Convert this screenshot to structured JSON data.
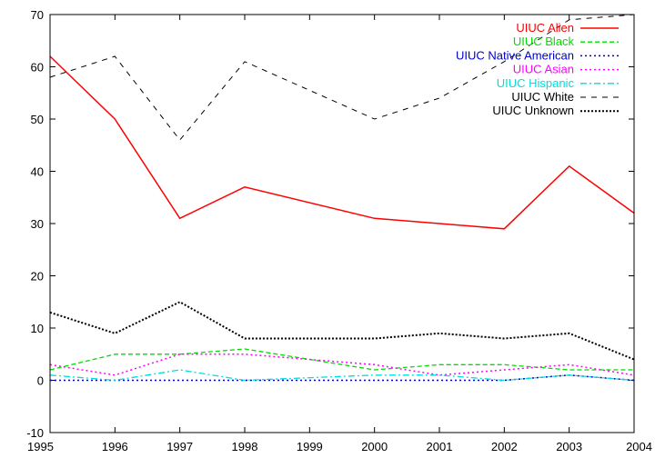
{
  "chart_data": {
    "type": "line",
    "title": "",
    "xlabel": "",
    "ylabel": "",
    "xlim": [
      1995,
      2004
    ],
    "ylim": [
      -10,
      70
    ],
    "x_ticks": [
      "1995",
      "1996",
      "1997",
      "1998",
      "1999",
      "2000",
      "2001",
      "2002",
      "2003",
      "2004"
    ],
    "y_ticks": [
      "-10",
      "0",
      "10",
      "20",
      "30",
      "40",
      "50",
      "60",
      "70"
    ],
    "grid": false,
    "legend_position": "top-right",
    "x": [
      1995,
      1996,
      1997,
      1998,
      2000,
      2001,
      2002,
      2003,
      2004
    ],
    "series": [
      {
        "name": "UIUC Alien",
        "color": "#ff0000",
        "dash": "solid",
        "values": [
          62,
          50,
          31,
          37,
          31,
          30,
          29,
          41,
          32
        ]
      },
      {
        "name": "UIUC Black",
        "color": "#00dd00",
        "dash": "dashed",
        "values": [
          2,
          5,
          5,
          6,
          2,
          3,
          3,
          2,
          2
        ]
      },
      {
        "name": "UIUC Native American",
        "color": "#0000cc",
        "dash": "dotted",
        "values": [
          0,
          0,
          0,
          0,
          0,
          0,
          0,
          1,
          0
        ]
      },
      {
        "name": "UIUC Asian",
        "color": "#ff00ff",
        "dash": "dotted",
        "values": [
          3,
          1,
          5,
          5,
          3,
          1,
          2,
          3,
          1
        ]
      },
      {
        "name": "UIUC Hispanic",
        "color": "#00dddd",
        "dash": "dashdot",
        "values": [
          1,
          0,
          2,
          0,
          1,
          1,
          0,
          1,
          0
        ]
      },
      {
        "name": "UIUC White",
        "color": "#000000",
        "dash": "longdash",
        "values": [
          58,
          62,
          46,
          61,
          50,
          54,
          61,
          69,
          70
        ]
      },
      {
        "name": "UIUC Unknown",
        "color": "#000000",
        "dash": "densedot",
        "values": [
          13,
          9,
          15,
          8,
          8,
          9,
          8,
          9,
          4
        ]
      }
    ]
  }
}
